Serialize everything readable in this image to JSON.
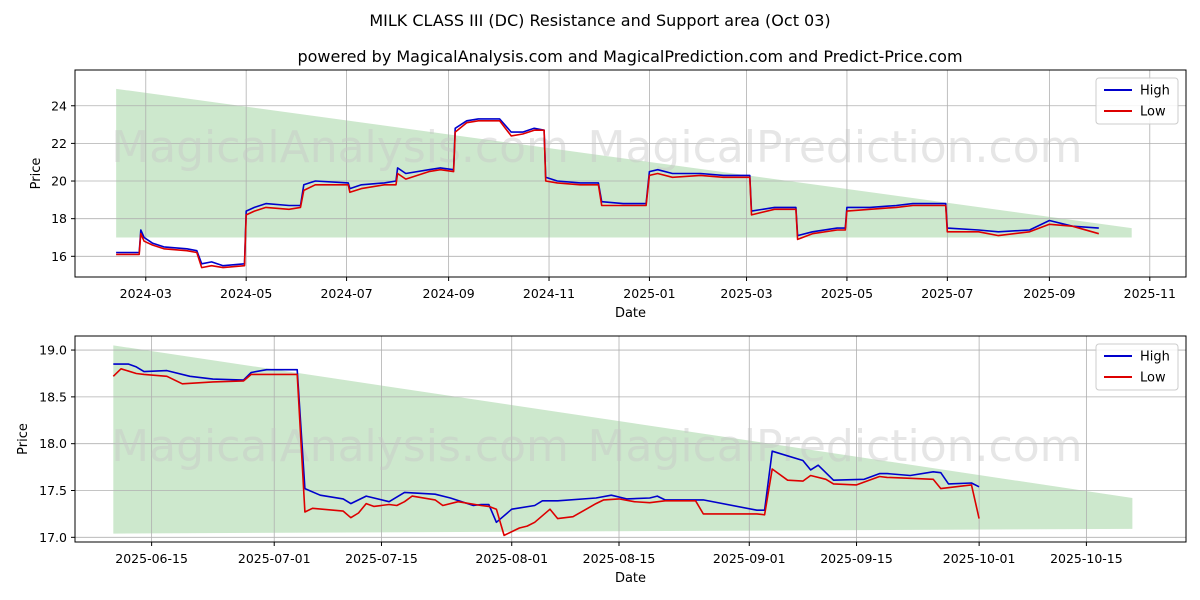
{
  "title": "MILK CLASS III (DC) Resistance and Support area (Oct 03)",
  "subtitle": "powered by MagicalAnalysis.com and MagicalPrediction.com and Predict-Price.com",
  "watermarks": [
    "MagicalAnalysis.com",
    "MagicalPrediction.com"
  ],
  "colors": {
    "high": "#0000cc",
    "low": "#dd0000",
    "band": "#c8e6c8",
    "grid": "#b0b0b0"
  },
  "chart_data": [
    {
      "type": "line",
      "xlabel": "Date",
      "ylabel": "Price",
      "xlim": [
        "2024-01-18",
        "2025-11-23"
      ],
      "ylim": [
        14.9,
        25.9
      ],
      "x_ticks": [
        "2024-03",
        "2024-05",
        "2024-07",
        "2024-09",
        "2024-11",
        "2025-01",
        "2025-03",
        "2025-05",
        "2025-07",
        "2025-09",
        "2025-11"
      ],
      "x_tick_dates": [
        "2024-03-01",
        "2024-05-01",
        "2024-07-01",
        "2024-09-01",
        "2024-11-01",
        "2025-01-01",
        "2025-03-01",
        "2025-05-01",
        "2025-07-01",
        "2025-09-01",
        "2025-11-01"
      ],
      "y_ticks": [
        16,
        18,
        20,
        22,
        24
      ],
      "grid": true,
      "legend": "top-right",
      "band": {
        "x": [
          "2024-02-12",
          "2025-10-21"
        ],
        "upper": [
          24.9,
          17.5
        ],
        "lower": [
          17.0,
          17.0
        ]
      },
      "series": [
        {
          "name": "High",
          "x": [
            "2024-02-12",
            "2024-02-26",
            "2024-02-27",
            "2024-02-29",
            "2024-03-05",
            "2024-03-12",
            "2024-03-26",
            "2024-04-01",
            "2024-04-04",
            "2024-04-10",
            "2024-04-17",
            "2024-04-30",
            "2024-05-01",
            "2024-05-06",
            "2024-05-13",
            "2024-05-27",
            "2024-06-03",
            "2024-06-05",
            "2024-06-12",
            "2024-07-02",
            "2024-07-03",
            "2024-07-10",
            "2024-07-24",
            "2024-07-31",
            "2024-08-01",
            "2024-08-06",
            "2024-08-20",
            "2024-08-27",
            "2024-09-04",
            "2024-09-05",
            "2024-09-12",
            "2024-09-19",
            "2024-10-02",
            "2024-10-09",
            "2024-10-16",
            "2024-10-23",
            "2024-10-29",
            "2024-10-30",
            "2024-11-06",
            "2024-11-20",
            "2024-12-01",
            "2024-12-03",
            "2024-12-16",
            "2024-12-30",
            "2025-01-01",
            "2025-01-06",
            "2025-01-15",
            "2025-02-01",
            "2025-02-15",
            "2025-03-03",
            "2025-03-04",
            "2025-03-18",
            "2025-03-31",
            "2025-04-01",
            "2025-04-10",
            "2025-04-25",
            "2025-04-30",
            "2025-05-01",
            "2025-05-15",
            "2025-05-31",
            "2025-06-10",
            "2025-06-20",
            "2025-06-30",
            "2025-07-01",
            "2025-07-20",
            "2025-08-01",
            "2025-08-20",
            "2025-09-01",
            "2025-09-15",
            "2025-10-01"
          ],
          "values": [
            16.2,
            16.2,
            17.4,
            17.0,
            16.7,
            16.5,
            16.4,
            16.3,
            15.6,
            15.7,
            15.5,
            15.6,
            18.4,
            18.6,
            18.8,
            18.7,
            18.7,
            19.8,
            20.0,
            19.9,
            19.6,
            19.8,
            19.9,
            20.0,
            20.7,
            20.4,
            20.6,
            20.7,
            20.6,
            22.8,
            23.2,
            23.3,
            23.3,
            22.6,
            22.6,
            22.8,
            22.7,
            20.2,
            20.0,
            19.9,
            19.9,
            18.9,
            18.8,
            18.8,
            20.5,
            20.6,
            20.4,
            20.4,
            20.3,
            20.3,
            18.4,
            18.6,
            18.6,
            17.1,
            17.3,
            17.5,
            17.5,
            18.6,
            18.6,
            18.7,
            18.8,
            18.8,
            18.8,
            17.5,
            17.4,
            17.3,
            17.4,
            17.9,
            17.6,
            17.5
          ]
        },
        {
          "name": "Low",
          "x": [
            "2024-02-12",
            "2024-02-26",
            "2024-02-27",
            "2024-02-29",
            "2024-03-05",
            "2024-03-12",
            "2024-03-26",
            "2024-04-01",
            "2024-04-04",
            "2024-04-10",
            "2024-04-17",
            "2024-04-30",
            "2024-05-01",
            "2024-05-06",
            "2024-05-13",
            "2024-05-27",
            "2024-06-03",
            "2024-06-05",
            "2024-06-12",
            "2024-07-02",
            "2024-07-03",
            "2024-07-10",
            "2024-07-24",
            "2024-07-31",
            "2024-08-01",
            "2024-08-06",
            "2024-08-20",
            "2024-08-27",
            "2024-09-04",
            "2024-09-05",
            "2024-09-12",
            "2024-09-19",
            "2024-10-02",
            "2024-10-09",
            "2024-10-16",
            "2024-10-23",
            "2024-10-29",
            "2024-10-30",
            "2024-11-06",
            "2024-11-20",
            "2024-12-01",
            "2024-12-03",
            "2024-12-16",
            "2024-12-30",
            "2025-01-01",
            "2025-01-06",
            "2025-01-15",
            "2025-02-01",
            "2025-02-15",
            "2025-03-03",
            "2025-03-04",
            "2025-03-18",
            "2025-03-31",
            "2025-04-01",
            "2025-04-10",
            "2025-04-25",
            "2025-04-30",
            "2025-05-01",
            "2025-05-15",
            "2025-05-31",
            "2025-06-10",
            "2025-06-20",
            "2025-06-30",
            "2025-07-01",
            "2025-07-20",
            "2025-08-01",
            "2025-08-20",
            "2025-09-01",
            "2025-09-15",
            "2025-10-01"
          ],
          "values": [
            16.1,
            16.1,
            17.2,
            16.8,
            16.6,
            16.4,
            16.3,
            16.2,
            15.4,
            15.5,
            15.4,
            15.5,
            18.2,
            18.4,
            18.6,
            18.5,
            18.6,
            19.5,
            19.8,
            19.8,
            19.4,
            19.6,
            19.8,
            19.8,
            20.4,
            20.1,
            20.5,
            20.6,
            20.5,
            22.6,
            23.1,
            23.2,
            23.2,
            22.4,
            22.5,
            22.7,
            22.7,
            20.0,
            19.9,
            19.8,
            19.8,
            18.7,
            18.7,
            18.7,
            20.3,
            20.4,
            20.2,
            20.3,
            20.2,
            20.2,
            18.2,
            18.5,
            18.5,
            16.9,
            17.2,
            17.4,
            17.4,
            18.4,
            18.5,
            18.6,
            18.7,
            18.7,
            18.7,
            17.3,
            17.3,
            17.1,
            17.3,
            17.7,
            17.6,
            17.2
          ]
        }
      ]
    },
    {
      "type": "line",
      "xlabel": "Date",
      "ylabel": "Price",
      "xlim": [
        "2025-06-05",
        "2025-10-28"
      ],
      "ylim": [
        16.95,
        19.15
      ],
      "x_ticks": [
        "2025-06-15",
        "2025-07-01",
        "2025-07-15",
        "2025-08-01",
        "2025-08-15",
        "2025-09-01",
        "2025-09-15",
        "2025-10-01",
        "2025-10-15"
      ],
      "y_ticks": [
        17.0,
        17.5,
        18.0,
        18.5,
        19.0
      ],
      "y_tick_labels": [
        "17.0",
        "17.5",
        "18.0",
        "18.5",
        "19.0"
      ],
      "grid": true,
      "legend": "top-right",
      "band": {
        "x": [
          "2025-06-10",
          "2025-10-21"
        ],
        "upper": [
          19.05,
          17.42
        ],
        "lower": [
          17.04,
          17.09
        ]
      },
      "series": [
        {
          "name": "High",
          "x": [
            "2025-06-10",
            "2025-06-12",
            "2025-06-13",
            "2025-06-14",
            "2025-06-17",
            "2025-06-20",
            "2025-06-23",
            "2025-06-27",
            "2025-06-28",
            "2025-06-30",
            "2025-07-04",
            "2025-07-05",
            "2025-07-07",
            "2025-07-10",
            "2025-07-11",
            "2025-07-13",
            "2025-07-16",
            "2025-07-18",
            "2025-07-20",
            "2025-07-22",
            "2025-07-24",
            "2025-07-27",
            "2025-07-28",
            "2025-07-29",
            "2025-07-30",
            "2025-08-01",
            "2025-08-04",
            "2025-08-05",
            "2025-08-07",
            "2025-08-12",
            "2025-08-14",
            "2025-08-16",
            "2025-08-19",
            "2025-08-20",
            "2025-08-21",
            "2025-08-25",
            "2025-08-26",
            "2025-09-02",
            "2025-09-03",
            "2025-09-04",
            "2025-09-08",
            "2025-09-09",
            "2025-09-10",
            "2025-09-12",
            "2025-09-16",
            "2025-09-18",
            "2025-09-19",
            "2025-09-22",
            "2025-09-25",
            "2025-09-26",
            "2025-09-27",
            "2025-09-30",
            "2025-10-01"
          ],
          "values": [
            18.85,
            18.85,
            18.82,
            18.77,
            18.78,
            18.72,
            18.69,
            18.68,
            18.76,
            18.79,
            18.79,
            17.52,
            17.45,
            17.41,
            17.36,
            17.44,
            17.38,
            17.48,
            17.47,
            17.46,
            17.42,
            17.34,
            17.35,
            17.35,
            17.16,
            17.3,
            17.34,
            17.39,
            17.39,
            17.42,
            17.45,
            17.41,
            17.42,
            17.44,
            17.4,
            17.4,
            17.4,
            17.29,
            17.29,
            17.92,
            17.82,
            17.72,
            17.77,
            17.61,
            17.62,
            17.68,
            17.68,
            17.66,
            17.7,
            17.69,
            17.57,
            17.58,
            17.54
          ]
        },
        {
          "name": "Low",
          "x": [
            "2025-06-10",
            "2025-06-11",
            "2025-06-13",
            "2025-06-14",
            "2025-06-17",
            "2025-06-19",
            "2025-06-23",
            "2025-06-27",
            "2025-06-28",
            "2025-06-30",
            "2025-07-04",
            "2025-07-05",
            "2025-07-06",
            "2025-07-10",
            "2025-07-11",
            "2025-07-12",
            "2025-07-13",
            "2025-07-14",
            "2025-07-16",
            "2025-07-17",
            "2025-07-18",
            "2025-07-19",
            "2025-07-22",
            "2025-07-23",
            "2025-07-25",
            "2025-07-28",
            "2025-07-29",
            "2025-07-30",
            "2025-07-31",
            "2025-08-02",
            "2025-08-03",
            "2025-08-04",
            "2025-08-06",
            "2025-08-07",
            "2025-08-09",
            "2025-08-12",
            "2025-08-13",
            "2025-08-15",
            "2025-08-17",
            "2025-08-19",
            "2025-08-21",
            "2025-08-25",
            "2025-08-26",
            "2025-09-02",
            "2025-09-03",
            "2025-09-04",
            "2025-09-06",
            "2025-09-08",
            "2025-09-09",
            "2025-09-11",
            "2025-09-12",
            "2025-09-15",
            "2025-09-18",
            "2025-09-19",
            "2025-09-22",
            "2025-09-25",
            "2025-09-26",
            "2025-09-29",
            "2025-09-30",
            "2025-10-01"
          ],
          "values": [
            18.72,
            18.8,
            18.75,
            18.74,
            18.72,
            18.64,
            18.66,
            18.67,
            18.74,
            18.74,
            18.74,
            17.27,
            17.31,
            17.28,
            17.21,
            17.26,
            17.36,
            17.33,
            17.35,
            17.34,
            17.38,
            17.44,
            17.4,
            17.34,
            17.38,
            17.34,
            17.33,
            17.3,
            17.02,
            17.1,
            17.12,
            17.16,
            17.3,
            17.2,
            17.22,
            17.36,
            17.4,
            17.41,
            17.38,
            17.37,
            17.39,
            17.39,
            17.25,
            17.25,
            17.24,
            17.73,
            17.61,
            17.6,
            17.66,
            17.62,
            17.57,
            17.56,
            17.65,
            17.64,
            17.63,
            17.62,
            17.52,
            17.55,
            17.56,
            17.2
          ]
        }
      ]
    }
  ]
}
